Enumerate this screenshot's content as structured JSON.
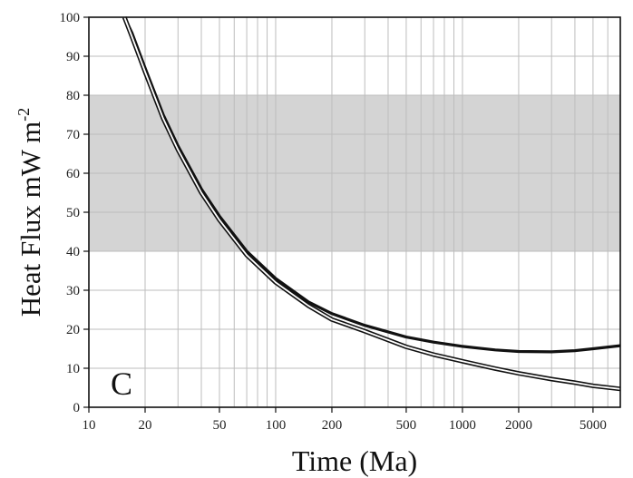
{
  "chart_data": {
    "type": "line",
    "title": "",
    "xlabel": "Time (Ma)",
    "ylabel": "Heat Flux mW m",
    "ylabel_superscript": "-2",
    "panel_label": "C",
    "xscale": "log",
    "xlim": [
      10,
      7000
    ],
    "ylim": [
      0,
      100
    ],
    "x_ticks": [
      10,
      20,
      50,
      100,
      200,
      500,
      1000,
      2000,
      5000
    ],
    "x_tick_labels": [
      "10",
      "20",
      "50",
      "100",
      "200",
      "500",
      "1000",
      "2000",
      "5000"
    ],
    "y_ticks": [
      0,
      10,
      20,
      30,
      40,
      50,
      60,
      70,
      80,
      90,
      100
    ],
    "y_tick_labels": [
      "0",
      "10",
      "20",
      "30",
      "40",
      "50",
      "60",
      "70",
      "80",
      "90",
      "100"
    ],
    "grid": true,
    "shaded_band": {
      "y_range": [
        40,
        80
      ],
      "color": "#d4d4d4"
    },
    "colors": {
      "line": "#111111",
      "grid": "#bdbdbd",
      "frame": "#111111",
      "band": "#d4d4d4"
    },
    "series": [
      {
        "style": "thick",
        "x": [
          15.5,
          17,
          20,
          25,
          30,
          40,
          50,
          70,
          100,
          150,
          200,
          300,
          500,
          700,
          1000,
          1500,
          2000,
          3000,
          4000,
          5000,
          7000
        ],
        "y": [
          100,
          96,
          87,
          75,
          67,
          56,
          49,
          40,
          33,
          27,
          24,
          21,
          18,
          16.7,
          15.6,
          14.7,
          14.3,
          14.2,
          14.5,
          15,
          15.8
        ]
      },
      {
        "style": "double",
        "x": [
          15.5,
          17,
          20,
          25,
          30,
          40,
          50,
          70,
          100,
          150,
          200,
          300,
          500,
          700,
          1000,
          1500,
          2000,
          3000,
          4000,
          5000,
          7000
        ],
        "y": [
          100,
          95,
          86,
          74,
          66,
          55,
          48,
          39,
          32,
          26,
          22.5,
          19.5,
          15.5,
          13.5,
          11.8,
          9.9,
          8.7,
          7.2,
          6.3,
          5.5,
          4.7
        ]
      }
    ]
  }
}
